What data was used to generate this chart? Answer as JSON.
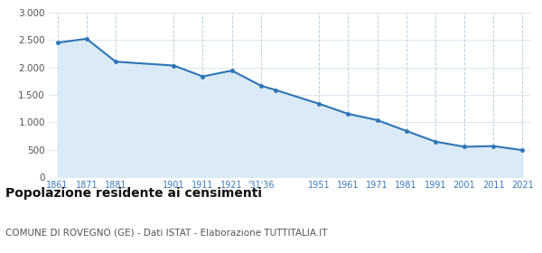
{
  "years": [
    1861,
    1871,
    1881,
    1901,
    1911,
    1921,
    1931,
    1936,
    1951,
    1961,
    1971,
    1981,
    1991,
    2001,
    2011,
    2021
  ],
  "population": [
    2452,
    2524,
    2106,
    2035,
    1836,
    1944,
    1667,
    1590,
    1338,
    1154,
    1040,
    843,
    648,
    554,
    566,
    492
  ],
  "line_color": "#2e75b6",
  "fill_color": "#daeaf7",
  "marker_color": "#2e75b6",
  "grid_color_v": "#b8cfe0",
  "grid_color_h": "#d0dde8",
  "background_color": "#ffffff",
  "title": "Popolazione residente ai censimenti",
  "subtitle": "COMUNE DI ROVEGNO (GE) - Dati ISTAT - Elaborazione TUTTITALIA.IT",
  "ylim": [
    0,
    3000
  ],
  "yticks": [
    0,
    500,
    1000,
    1500,
    2000,
    2500,
    3000
  ],
  "title_fontsize": 10,
  "subtitle_fontsize": 7.5,
  "tick_label_color": "#3a7abf"
}
